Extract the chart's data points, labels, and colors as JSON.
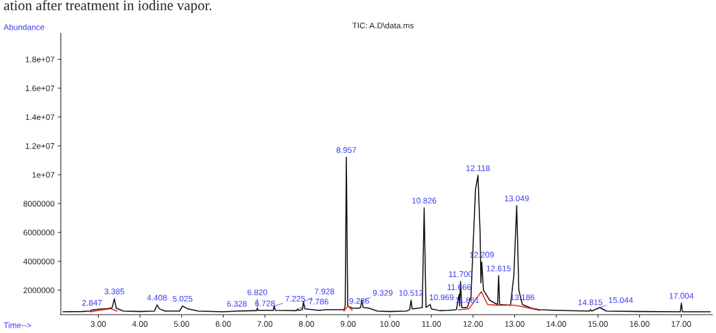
{
  "chart_data": {
    "type": "line",
    "title": "TIC: A.D\\data.ms",
    "xlabel": "Time-->",
    "ylabel": "Abundance",
    "xlim": [
      2.1,
      17.75
    ],
    "xticks": [
      {
        "value": 3,
        "label": "3.00"
      },
      {
        "value": 4,
        "label": "4.00"
      },
      {
        "value": 5,
        "label": "5.00"
      },
      {
        "value": 6,
        "label": "6.00"
      },
      {
        "value": 7,
        "label": "7.00"
      },
      {
        "value": 8,
        "label": "8.00"
      },
      {
        "value": 9,
        "label": "9.00"
      },
      {
        "value": 10,
        "label": "10.00"
      },
      {
        "value": 11,
        "label": "11.00"
      },
      {
        "value": 12,
        "label": "12.00"
      },
      {
        "value": 13,
        "label": "13.00"
      },
      {
        "value": 14,
        "label": "14.00"
      },
      {
        "value": 15,
        "label": "15.00"
      },
      {
        "value": 16,
        "label": "16.00"
      },
      {
        "value": 17,
        "label": "17.00"
      }
    ],
    "ylim": [
      300000,
      19800000
    ],
    "yticks": [
      2000000,
      4000000,
      6000000,
      8000000,
      {
        "value": 10000000,
        "label": "1e+07"
      },
      {
        "value": 12000000,
        "label": "1.2e+07"
      },
      {
        "value": 14000000,
        "label": "1.4e+07"
      },
      {
        "value": 16000000,
        "label": "1.6e+07"
      },
      {
        "value": 18000000,
        "label": "1.8e+07"
      }
    ],
    "grid": false,
    "legend": false,
    "marker": "none",
    "line_style": "solid",
    "series": [
      {
        "color": "#111111",
        "x": [
          2.15,
          2.6,
          2.8,
          2.85,
          3.0,
          3.2,
          3.33,
          3.385,
          3.43,
          3.6,
          4.0,
          4.35,
          4.408,
          4.47,
          4.6,
          4.95,
          5.025,
          5.15,
          5.4,
          6.0,
          6.328,
          6.728,
          6.8,
          6.82,
          6.84,
          7.2,
          7.225,
          7.25,
          7.76,
          7.786,
          7.81,
          7.9,
          7.928,
          7.96,
          8.3,
          8.45,
          8.9,
          8.93,
          8.957,
          8.99,
          9.1,
          9.266,
          9.3,
          9.329,
          9.36,
          9.5,
          9.7,
          10.0,
          10.4,
          10.48,
          10.512,
          10.54,
          10.7,
          10.78,
          10.826,
          10.87,
          10.969,
          11.0,
          11.2,
          11.4,
          11.6,
          11.666,
          11.68,
          11.7,
          11.73,
          11.861,
          11.95,
          12.0,
          12.06,
          12.118,
          12.17,
          12.19,
          12.209,
          12.25,
          12.4,
          12.59,
          12.615,
          12.64,
          12.9,
          12.98,
          13.049,
          13.1,
          13.186,
          13.4,
          13.6,
          14.0,
          14.8,
          14.815,
          14.85,
          15.044,
          15.2,
          16.0,
          16.98,
          17.004,
          17.03,
          17.7
        ],
        "values": [
          500000,
          520000,
          550000,
          620000,
          680000,
          720000,
          780000,
          1400000,
          750000,
          550000,
          520000,
          550000,
          970000,
          700000,
          550000,
          550000,
          900000,
          700000,
          550000,
          500000,
          550000,
          580000,
          580000,
          750000,
          600000,
          600000,
          900000,
          600000,
          580000,
          700000,
          600000,
          650000,
          1200000,
          700000,
          600000,
          650000,
          650000,
          900000,
          11200000,
          900000,
          750000,
          750000,
          800000,
          1300000,
          800000,
          750000,
          550000,
          520000,
          550000,
          650000,
          1300000,
          700000,
          750000,
          800000,
          7700000,
          800000,
          1000000,
          700000,
          580000,
          600000,
          650000,
          1700000,
          900000,
          2600000,
          800000,
          800000,
          1500000,
          5000000,
          9000000,
          9950000,
          6000000,
          2500000,
          3950000,
          2000000,
          1300000,
          1000000,
          3000000,
          1000000,
          950000,
          3000000,
          7850000,
          2000000,
          1000000,
          750000,
          650000,
          600000,
          550000,
          650000,
          550000,
          800000,
          550000,
          520000,
          500000,
          1100000,
          500000,
          500000
        ]
      },
      {
        "color": "#e8231e",
        "x": [
          2.8,
          3.3,
          3.45,
          null,
          8.9,
          9.0,
          9.1,
          null,
          11.65,
          11.9,
          12.2,
          12.35,
          12.6,
          13.0,
          13.2,
          13.6
        ],
        "values": [
          500000,
          720000,
          550000,
          null,
          550000,
          900000,
          600000,
          null,
          650000,
          700000,
          1900000,
          1000000,
          950000,
          950000,
          850000,
          600000
        ]
      }
    ],
    "annotations": [
      "ation after treatment in iodine vapor.",
      {
        "text": "2.847",
        "x": 2.847,
        "y": 620000
      },
      {
        "text": "3.385",
        "x": 3.385,
        "y": 1400000
      },
      {
        "text": "4.408",
        "x": 4.408,
        "y": 970000
      },
      {
        "text": "5.025",
        "x": 5.025,
        "y": 900000
      },
      {
        "text": "6.328",
        "x": 6.328,
        "y": 550000
      },
      {
        "text": "6.728",
        "x": 6.728,
        "y": 580000
      },
      {
        "text": "6.820",
        "x": 6.82,
        "y": 750000
      },
      {
        "text": "7.225",
        "x": 7.225,
        "y": 900000
      },
      {
        "text": "7.786",
        "x": 7.786,
        "y": 700000
      },
      {
        "text": "7.928",
        "x": 7.928,
        "y": 1200000
      },
      {
        "text": "8.957",
        "x": 8.957,
        "y": 11200000
      },
      {
        "text": "9.266",
        "x": 9.266,
        "y": 750000
      },
      {
        "text": "9.329",
        "x": 9.329,
        "y": 1300000
      },
      {
        "text": "10.512",
        "x": 10.512,
        "y": 1300000
      },
      {
        "text": "10.826",
        "x": 10.826,
        "y": 7700000
      },
      {
        "text": "10.969",
        "x": 10.969,
        "y": 1000000
      },
      {
        "text": "11.666",
        "x": 11.666,
        "y": 1700000
      },
      {
        "text": "11.700",
        "x": 11.7,
        "y": 2600000
      },
      {
        "text": "11.861",
        "x": 11.861,
        "y": 800000
      },
      {
        "text": "12.118",
        "x": 12.118,
        "y": 9950000
      },
      {
        "text": "12.209",
        "x": 12.209,
        "y": 3950000
      },
      {
        "text": "12.615",
        "x": 12.615,
        "y": 3000000
      },
      {
        "text": "13.049",
        "x": 13.049,
        "y": 7850000
      },
      {
        "text": "13.186",
        "x": 13.186,
        "y": 1000000
      },
      {
        "text": "14.815",
        "x": 14.815,
        "y": 650000
      },
      {
        "text": "15.044",
        "x": 15.044,
        "y": 800000
      },
      {
        "text": "17.004",
        "x": 17.004,
        "y": 1100000
      }
    ]
  }
}
